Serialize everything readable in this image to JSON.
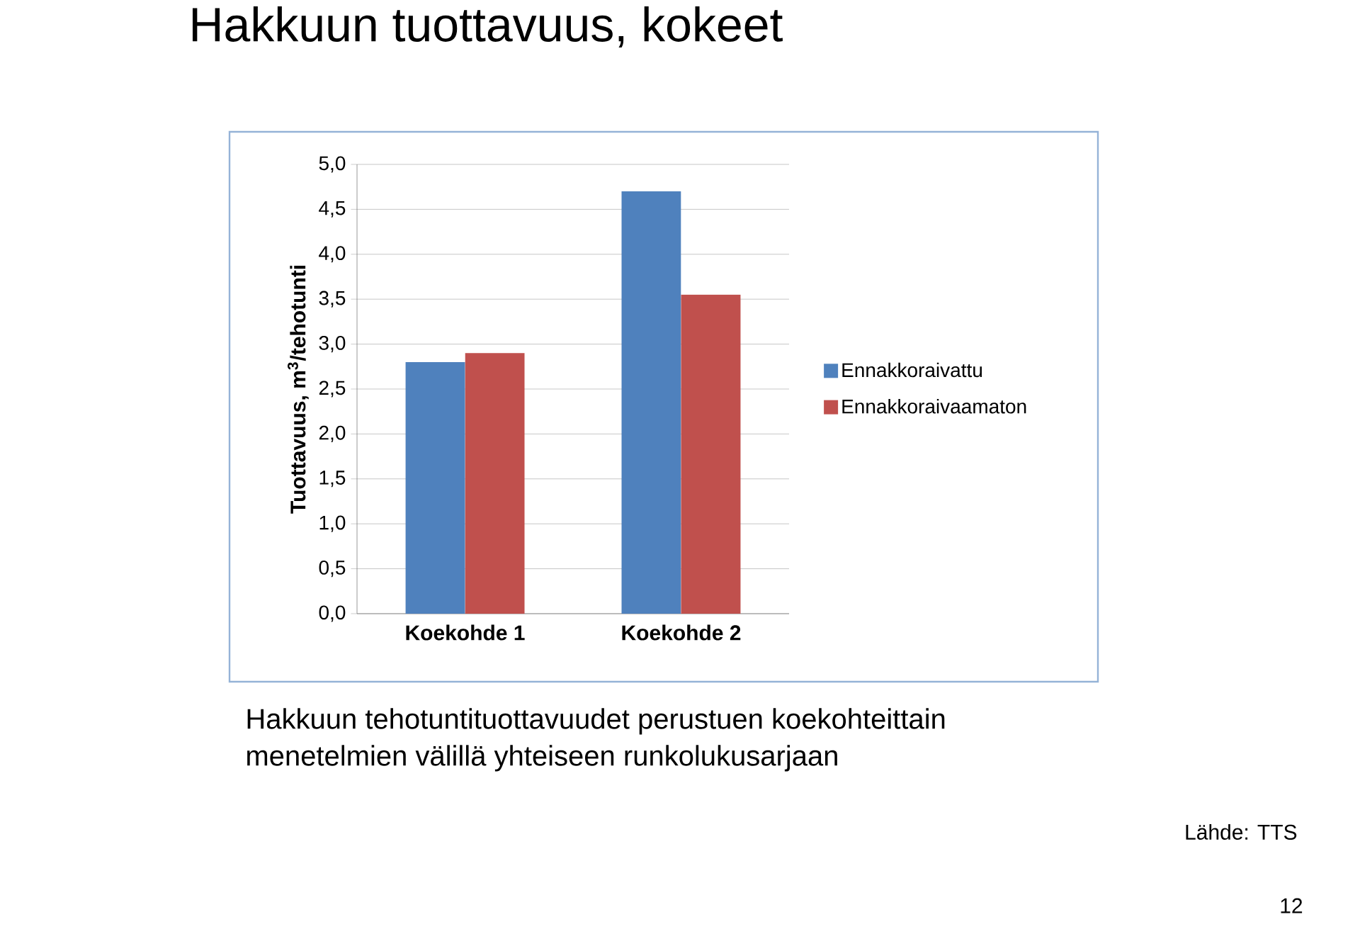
{
  "chart_data": {
    "type": "bar",
    "title": "Hakkuun tuottavuus, kokeet",
    "ylabel": "Tuottavuus, m$^{3}$/tehotunti",
    "categories": [
      "Koekohde 1",
      "Koekohde 2"
    ],
    "series": [
      {
        "name": "Ennakkoraivattu",
        "color": "#4f81bd",
        "values": [
          2.8,
          4.7
        ]
      },
      {
        "name": "Ennakkoraivaamaton",
        "color": "#c0504d",
        "values": [
          2.9,
          3.55
        ]
      }
    ],
    "ylim": [
      0,
      5
    ],
    "yticks": [
      {
        "value": 0,
        "label": "0,0"
      },
      {
        "value": 0.5,
        "label": "0,5"
      },
      {
        "value": 1,
        "label": "1,0"
      },
      {
        "value": 1.5,
        "label": "1,5"
      },
      {
        "value": 2,
        "label": "2,0"
      },
      {
        "value": 2.5,
        "label": "2,5"
      },
      {
        "value": 3,
        "label": "3,0"
      },
      {
        "value": 3.5,
        "label": "3,5"
      },
      {
        "value": 4,
        "label": "4,0"
      },
      {
        "value": 4.5,
        "label": "4,5"
      },
      {
        "value": 5,
        "label": "5,0"
      }
    ],
    "grid": "y",
    "legend": "right",
    "annotations": [
      "Hakkuun tehotuntituottavuudet perustuen koekohteittain",
      "menetelmien välillä yhteiseen runkolukusarjaan",
      "Lähde: TTS",
      "12"
    ]
  }
}
